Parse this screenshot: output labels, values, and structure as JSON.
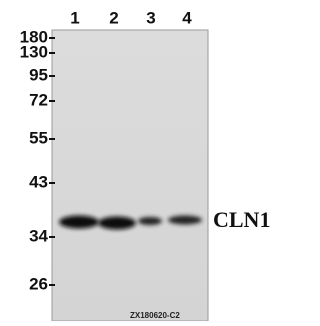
{
  "lanes": [
    "1",
    "2",
    "3",
    "4"
  ],
  "markers": [
    "180",
    "130",
    "95",
    "72",
    "55",
    "43",
    "34",
    "26"
  ],
  "band_label": "CLN1",
  "catalog_code": "ZX180620-C2"
}
